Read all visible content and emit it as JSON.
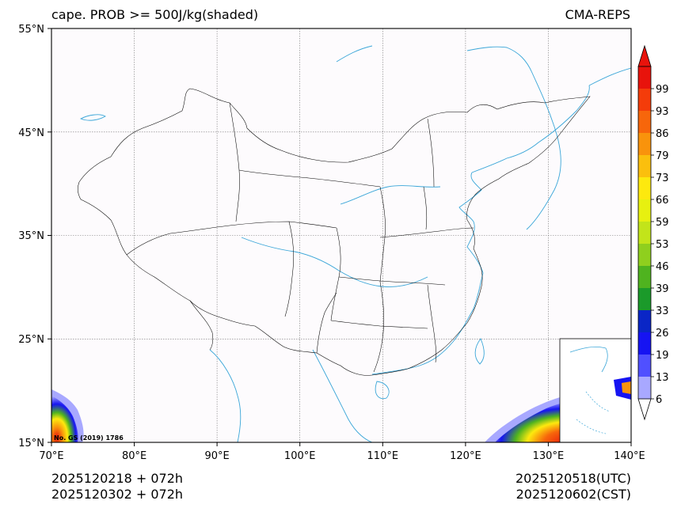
{
  "title": {
    "left": "cape. PROB >= 500J/kg(shaded)",
    "right": "CMA-REPS"
  },
  "axes": {
    "lat_ticks": [
      "55°N",
      "45°N",
      "35°N",
      "25°N",
      "15°N"
    ],
    "lon_ticks": [
      "70°E",
      "80°E",
      "90°E",
      "100°E",
      "110°E",
      "120°E",
      "130°E",
      "140°E"
    ]
  },
  "colorbar": {
    "labels": [
      "99",
      "93",
      "86",
      "79",
      "73",
      "66",
      "59",
      "53",
      "46",
      "39",
      "33",
      "26",
      "19",
      "13",
      "6"
    ],
    "colors": [
      "#e8130c",
      "#f43c0a",
      "#f7660b",
      "#f9930c",
      "#fbbf0d",
      "#fde90e",
      "#e7f010",
      "#c2e41a",
      "#8fcf1e",
      "#4fb31f",
      "#1b9a2a",
      "#0a26c6",
      "#1614f2",
      "#5050ff",
      "#a8a8ff"
    ]
  },
  "map": {
    "credit": "No. GS (2019) 1786",
    "coastline_color": "#3aa6d8",
    "border_color": "#000000"
  },
  "footer": {
    "line1_left": "2025120218  +  072h",
    "line2_left": "2025120302  +  072h",
    "line1_right": "2025120518(UTC)",
    "line2_right": "2025120602(CST)"
  }
}
